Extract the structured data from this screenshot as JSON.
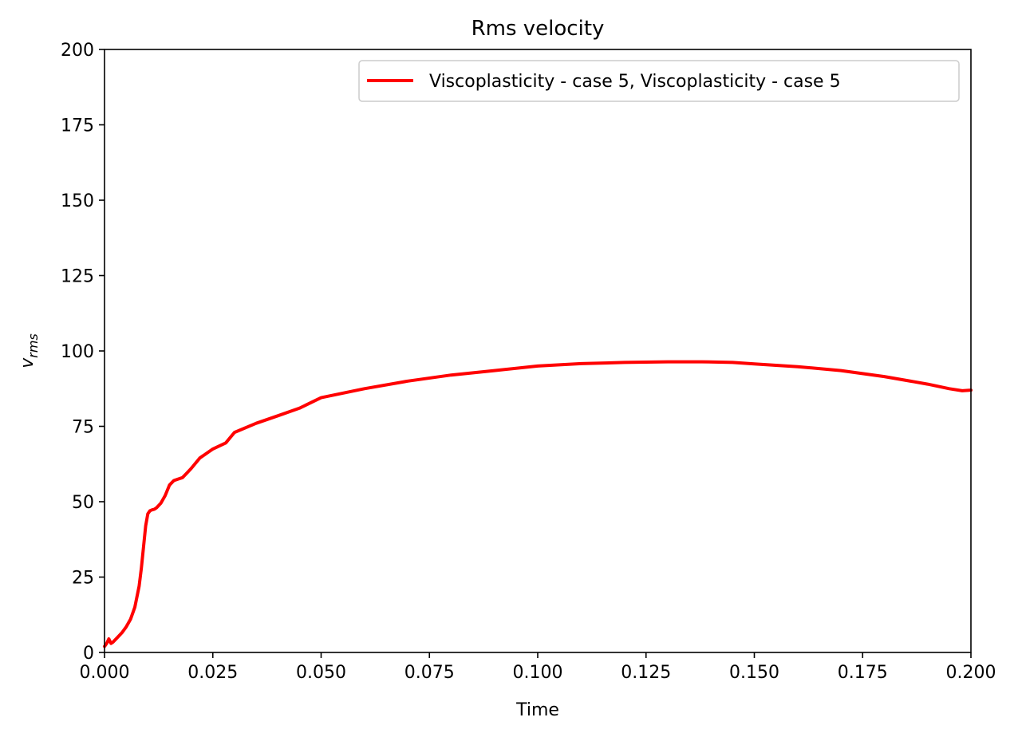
{
  "chart_data": {
    "type": "line",
    "title": "Rms velocity",
    "xlabel": "Time",
    "ylabel_main": "v",
    "ylabel_sub": "rms",
    "xlim": [
      0,
      0.2
    ],
    "ylim": [
      0,
      200
    ],
    "xticks": [
      0,
      0.025,
      0.05,
      0.075,
      0.1,
      0.125,
      0.15,
      0.175,
      0.2
    ],
    "xtick_labels": [
      "0.000",
      "0.025",
      "0.050",
      "0.075",
      "0.100",
      "0.125",
      "0.150",
      "0.175",
      "0.200"
    ],
    "yticks": [
      0,
      25,
      50,
      75,
      100,
      125,
      150,
      175,
      200
    ],
    "ytick_labels": [
      "0",
      "25",
      "50",
      "75",
      "100",
      "125",
      "150",
      "175",
      "200"
    ],
    "grid": false,
    "legend_position": "top-right",
    "series": [
      {
        "name": "Viscoplasticity - case 5, Viscoplasticity - case 5",
        "color": "#ff0000",
        "x": [
          0,
          0.0005,
          0.001,
          0.0015,
          0.002,
          0.003,
          0.004,
          0.005,
          0.006,
          0.007,
          0.008,
          0.0085,
          0.009,
          0.0095,
          0.01,
          0.0105,
          0.011,
          0.0115,
          0.012,
          0.013,
          0.014,
          0.015,
          0.016,
          0.017,
          0.018,
          0.019,
          0.02,
          0.022,
          0.025,
          0.028,
          0.03,
          0.035,
          0.04,
          0.045,
          0.05,
          0.06,
          0.07,
          0.08,
          0.09,
          0.1,
          0.11,
          0.12,
          0.13,
          0.138,
          0.145,
          0.15,
          0.16,
          0.17,
          0.18,
          0.19,
          0.195,
          0.198,
          0.2
        ],
        "y": [
          2,
          3,
          4.5,
          3,
          3.5,
          5,
          6.5,
          8.5,
          11,
          15,
          22,
          28,
          35,
          42,
          46,
          47,
          47.3,
          47.5,
          48,
          49.5,
          52,
          55.5,
          57,
          57.5,
          58,
          59.5,
          61,
          64.5,
          67.5,
          69.5,
          73,
          76,
          78.5,
          81,
          84.5,
          87.5,
          90,
          92,
          93.5,
          95,
          95.8,
          96.2,
          96.4,
          96.4,
          96.2,
          95.7,
          94.8,
          93.5,
          91.5,
          89,
          87.5,
          86.8,
          87
        ]
      }
    ]
  }
}
